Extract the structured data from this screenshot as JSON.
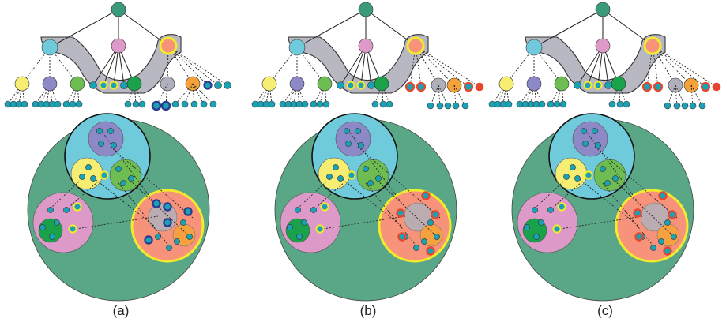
{
  "figure": {
    "panels": [
      {
        "id": "a",
        "label": "(a)",
        "moved_cluster": "inner-dark-blue-ring",
        "highlight_leaf_color": "#2b3a8f"
      },
      {
        "id": "b",
        "label": "(b)",
        "moved_cluster": "gray-node",
        "highlight_leaf_color": "#e8452c"
      },
      {
        "id": "c",
        "label": "(c)",
        "moved_cluster": "gray-node",
        "highlight_leaf_color": "#e8452c"
      }
    ]
  },
  "colors": {
    "root": "#3c9a7c",
    "big_circle": "#5aa787",
    "cyan": "#6fcbdc",
    "pink": "#dd9ac9",
    "yellow": "#f6ee73",
    "purple": "#8d88c6",
    "light_green": "#6ebd52",
    "dark_green": "#19a24a",
    "gray": "#b0b0bc",
    "orange": "#f6a23a",
    "salmon": "#f6937a",
    "teal_leaf": "#1ba1b4",
    "highlight_ring": "#f2ea2c",
    "hull": "#b8b8c2"
  }
}
